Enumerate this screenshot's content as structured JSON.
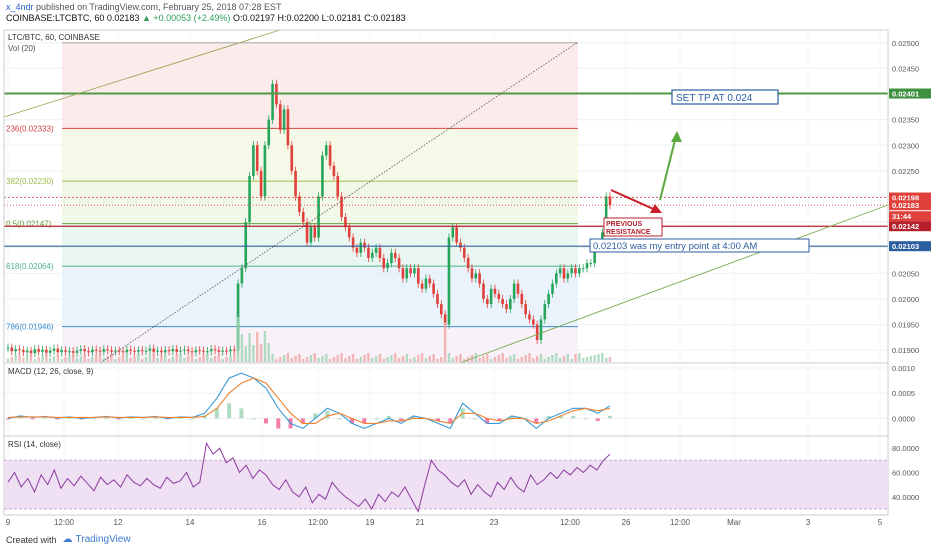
{
  "header": {
    "user": "x_4ndr",
    "published_text": "published on TradingView.com, February 25, 2018 07:28 EST",
    "symbol": "COINBASE:LTCBTC, 60",
    "last": "0.02183",
    "change": "+0.00053 (+2.49%)",
    "o": "O:0.02197",
    "h": "H:0.02200",
    "l": "L:0.02181",
    "c": "C:0.02183"
  },
  "footer": {
    "created_with": "Created with",
    "brand": "TradingView"
  },
  "colors": {
    "up": "#26a65b",
    "down": "#e0413b",
    "macd": "#3a9ad9",
    "signal": "#f0822e",
    "rsi": "#8b3a9e",
    "grid": "#eef0f3"
  },
  "chart_data": [
    {
      "type": "candlestick",
      "title": "LTC/BTC, 60, COINBASE",
      "legend": [
        "LTC/BTC, 60, COINBASE",
        "Vol (20)"
      ],
      "y_ticks": [
        "0.02500",
        "0.02450",
        "0.02400",
        "0.02350",
        "0.02300",
        "0.02250",
        "0.02200",
        "0.02150",
        "0.02100",
        "0.02050",
        "0.02000",
        "0.01950",
        "0.01900"
      ],
      "ylim": [
        0.01875,
        0.02525
      ],
      "x_ticks": [
        "9",
        "12:00",
        "12",
        "14",
        "16",
        "12:00",
        "19",
        "21",
        "23",
        "12:00",
        "26",
        "12:00",
        "Mar",
        "3",
        "5"
      ],
      "price_tags": [
        {
          "label": "0.02401",
          "color": "#3f9142"
        },
        {
          "label": "0.02198",
          "color": "#e0413b"
        },
        {
          "label": "0.02183",
          "color": "#e0413b"
        },
        {
          "label": "31:44",
          "color": "#e0413b"
        },
        {
          "label": "0.02142",
          "color": "#b5202a"
        },
        {
          "label": "0.02103",
          "color": "#2c5fa0"
        }
      ],
      "fib_labels": [
        "236(0.02333)",
        "382(0.02230)",
        "0.5(0.02147)",
        "618(0.02064)",
        "786(0.01946)"
      ],
      "fib_values": [
        0.02333,
        0.0223,
        0.02147,
        0.02064,
        0.01946
      ],
      "levels": {
        "tp": 0.02401,
        "resistance": 0.02142,
        "entry": 0.02103
      },
      "closes": [
        0.01905,
        0.01898,
        0.01902,
        0.019,
        0.01896,
        0.01899,
        0.01894,
        0.01902,
        0.01897,
        0.01901,
        0.01895,
        0.01899,
        0.01903,
        0.01896,
        0.019,
        0.01897,
        0.01898,
        0.01895,
        0.01899,
        0.01902,
        0.01898,
        0.01896,
        0.01901,
        0.01899,
        0.01897,
        0.01902,
        0.019,
        0.01897,
        0.01899,
        0.01898,
        0.01896,
        0.01901,
        0.01899,
        0.01897,
        0.019,
        0.01898,
        0.01899,
        0.01903,
        0.01897,
        0.01899,
        0.01896,
        0.019,
        0.01898,
        0.01902,
        0.01897,
        0.01899,
        0.01901,
        0.01898,
        0.01896,
        0.019,
        0.01899,
        0.01897,
        0.01898,
        0.01902,
        0.019,
        0.01897,
        0.01899,
        0.01898,
        0.01901,
        0.01899,
        0.0203,
        0.0206,
        0.0215,
        0.0224,
        0.023,
        0.0225,
        0.022,
        0.023,
        0.0235,
        0.0242,
        0.0238,
        0.0233,
        0.0237,
        0.023,
        0.0225,
        0.022,
        0.0217,
        0.0215,
        0.0211,
        0.0214,
        0.0212,
        0.022,
        0.0228,
        0.023,
        0.0226,
        0.0224,
        0.022,
        0.0216,
        0.0214,
        0.0212,
        0.021,
        0.0209,
        0.0211,
        0.021,
        0.0208,
        0.0209,
        0.021,
        0.0208,
        0.0206,
        0.0207,
        0.0209,
        0.0208,
        0.0206,
        0.0204,
        0.0206,
        0.0205,
        0.0206,
        0.0203,
        0.0202,
        0.0204,
        0.0203,
        0.0201,
        0.0199,
        0.0197,
        0.0195,
        0.0212,
        0.0214,
        0.0211,
        0.021,
        0.0208,
        0.0206,
        0.0204,
        0.0205,
        0.0203,
        0.02,
        0.0199,
        0.0202,
        0.0201,
        0.02,
        0.0199,
        0.0198,
        0.02,
        0.0203,
        0.0201,
        0.0199,
        0.0197,
        0.0196,
        0.0195,
        0.0192,
        0.0196,
        0.0199,
        0.0201,
        0.0203,
        0.0205,
        0.0206,
        0.0204,
        0.0205,
        0.0206,
        0.0205,
        0.0206,
        0.0206,
        0.0207,
        0.0207,
        0.021,
        0.0211,
        0.0213,
        0.022,
        0.02183
      ],
      "volume_note": "small bars; spikes near 14th and 20th"
    },
    {
      "type": "line",
      "title": "MACD (12, 26, close, 9)",
      "y_ticks": [
        "0.0010",
        "0.0005",
        "0.0000"
      ],
      "ylim": [
        -0.00035,
        0.0011
      ],
      "series": [
        {
          "name": "MACD",
          "values": [
            0.0,
            5e-05,
            2e-05,
            4e-05,
            1e-05,
            3e-05,
            0.0,
            2e-05,
            4e-05,
            1e-05,
            3e-05,
            2e-05,
            4e-05,
            0.0,
            3e-05,
            2e-05,
            0.0001,
            0.0004,
            0.0008,
            0.0009,
            0.0008,
            0.0006,
            0.0002,
            -0.0001,
            -0.0002,
            0.0,
            0.0002,
            0.0001,
            -0.0001,
            -0.0002,
            -0.0001,
            0.0,
            -0.0001,
            5e-05,
            0.0,
            -0.0001,
            -0.0002,
            0.0003,
            0.0001,
            -0.0001,
            -0.0001,
            5e-05,
            0.0,
            -0.0002,
            0.0,
            0.0001,
            0.0002,
            0.0002,
            0.0001,
            0.00025
          ]
        },
        {
          "name": "Signal",
          "values": [
            2e-05,
            3e-05,
            3e-05,
            3e-05,
            2e-05,
            2e-05,
            2e-05,
            2e-05,
            3e-05,
            2e-05,
            2e-05,
            2e-05,
            3e-05,
            2e-05,
            2e-05,
            2e-05,
            4e-05,
            0.0002,
            0.0005,
            0.0007,
            0.0008,
            0.0007,
            0.0004,
            0.0001,
            -0.0001,
            -0.0001,
            5e-05,
            0.0001,
            0.0,
            -0.0001,
            -0.0001,
            -5e-05,
            -5e-05,
            0.0,
            0.0,
            -5e-05,
            -0.0001,
            0.0001,
            0.0001,
            0.0,
            -5e-05,
            0.0,
            0.0,
            -0.0001,
            -5e-05,
            5e-05,
            0.00015,
            0.0002,
            0.00015,
            0.0002
          ]
        }
      ]
    },
    {
      "type": "line",
      "title": "RSI (14, close)",
      "y_ticks": [
        "80.0000",
        "60.0000",
        "40.0000"
      ],
      "ylim": [
        25,
        90
      ],
      "band": [
        30,
        70
      ],
      "series": [
        {
          "name": "RSI",
          "values": [
            52,
            60,
            48,
            55,
            44,
            58,
            50,
            62,
            47,
            55,
            49,
            57,
            51,
            45,
            56,
            50,
            54,
            48,
            58,
            52,
            49,
            55,
            50,
            47,
            56,
            51,
            53,
            60,
            48,
            52,
            84,
            75,
            80,
            68,
            72,
            60,
            66,
            55,
            62,
            58,
            50,
            46,
            54,
            44,
            40,
            48,
            35,
            42,
            38,
            52,
            45,
            40,
            36,
            32,
            38,
            30,
            42,
            36,
            44,
            40,
            48,
            38,
            28,
            50,
            70,
            62,
            58,
            52,
            48,
            54,
            42,
            50,
            44,
            40,
            52,
            46,
            56,
            48,
            44,
            58,
            50,
            54,
            60,
            55,
            62,
            58,
            64,
            60,
            66,
            62,
            70,
            75
          ]
        }
      ]
    }
  ],
  "annotations": {
    "tp_label": "SET TP AT 0.024",
    "resistance_label_1": "PREVIOUS",
    "resistance_label_2": "RESISTANCE",
    "entry_label": "0.02103 was my entry point at 4:00 AM"
  }
}
